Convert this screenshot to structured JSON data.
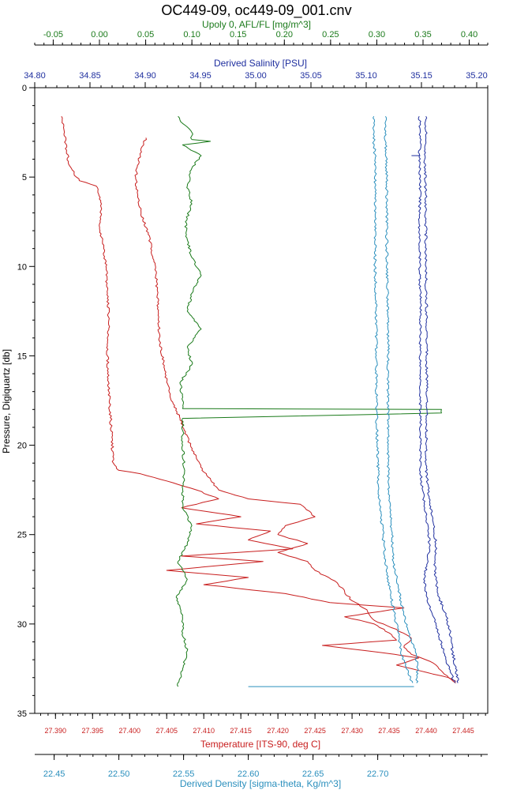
{
  "chart_data": {
    "type": "line",
    "title": "OC449-09, oc449-09_001.cnv",
    "grid": false,
    "legend": "none",
    "y_axis": {
      "label": "Pressure, Digiquartz [db]",
      "range": [
        0,
        35
      ],
      "inverted": true,
      "ticks": [
        0,
        5,
        10,
        15,
        20,
        25,
        30,
        35
      ],
      "tick_labels": [
        "0",
        "5",
        "10",
        "15",
        "20",
        "25",
        "30",
        "35"
      ]
    },
    "x_axes": [
      {
        "id": "upoly",
        "position": "top-outer",
        "label": "Upoly 0, AFL/FL [mg/m^3]",
        "color": "#1a7a1a",
        "range": [
          -0.07,
          0.42
        ],
        "ticks": [
          -0.05,
          0.0,
          0.05,
          0.1,
          0.15,
          0.2,
          0.25,
          0.3,
          0.35,
          0.4
        ],
        "tick_labels": [
          "-0.05",
          "0.00",
          "0.05",
          "0.10",
          "0.15",
          "0.20",
          "0.25",
          "0.30",
          "0.35",
          "0.40"
        ]
      },
      {
        "id": "salinity",
        "position": "top-inner",
        "label": "Derived Salinity [PSU]",
        "color": "#1f2f9f",
        "range": [
          34.8,
          35.21
        ],
        "ticks": [
          34.8,
          34.85,
          34.9,
          34.95,
          35.0,
          35.05,
          35.1,
          35.15,
          35.2
        ],
        "tick_labels": [
          "34.80",
          "34.85",
          "34.90",
          "34.95",
          "35.00",
          "35.05",
          "35.10",
          "35.15",
          "35.20"
        ]
      },
      {
        "id": "temperature",
        "position": "bottom-inner",
        "label": "Temperature [ITS-90, deg C]",
        "color": "#c81e1e",
        "range": [
          27.3872,
          27.4483
        ],
        "ticks": [
          27.39,
          27.395,
          27.4,
          27.405,
          27.41,
          27.415,
          27.42,
          27.425,
          27.43,
          27.435,
          27.44,
          27.445
        ],
        "tick_labels": [
          "27.390",
          "27.395",
          "27.400",
          "27.405",
          "27.410",
          "27.415",
          "27.420",
          "27.425",
          "27.430",
          "27.435",
          "27.440",
          "27.445"
        ]
      },
      {
        "id": "density",
        "position": "bottom-outer",
        "label": "Derived Density [sigma-theta, Kg/m^3]",
        "color": "#2a8fbd",
        "range": [
          22.435,
          22.785
        ],
        "ticks": [
          22.45,
          22.5,
          22.55,
          22.6,
          22.65,
          22.7
        ],
        "tick_labels": [
          "22.45",
          "22.50",
          "22.55",
          "22.60",
          "22.65",
          "22.70"
        ]
      }
    ],
    "series": [
      {
        "axis": "temperature",
        "color": "#c81e1e",
        "points": [
          [
            27.3908,
            1.6
          ],
          [
            27.3912,
            2.5
          ],
          [
            27.3915,
            3.5
          ],
          [
            27.3918,
            4.3
          ],
          [
            27.3925,
            4.8
          ],
          [
            27.3932,
            5.2
          ],
          [
            27.3955,
            5.5
          ],
          [
            27.3962,
            6.5
          ],
          [
            27.396,
            8.0
          ],
          [
            27.3965,
            9.0
          ],
          [
            27.3968,
            10.0
          ],
          [
            27.397,
            11.5
          ],
          [
            27.3972,
            13.0
          ],
          [
            27.397,
            15.0
          ],
          [
            27.3972,
            17.0
          ],
          [
            27.3975,
            19.0
          ],
          [
            27.3978,
            21.0
          ],
          [
            27.3985,
            21.4
          ],
          [
            27.4015,
            21.6
          ],
          [
            27.405,
            22.0
          ],
          [
            27.409,
            22.5
          ],
          [
            27.412,
            23.0
          ],
          [
            27.407,
            23.5
          ],
          [
            27.415,
            24.0
          ],
          [
            27.409,
            24.4
          ],
          [
            27.419,
            24.8
          ],
          [
            27.416,
            25.3
          ],
          [
            27.422,
            25.8
          ],
          [
            27.407,
            26.2
          ],
          [
            27.418,
            26.5
          ],
          [
            27.405,
            27.0
          ],
          [
            27.416,
            27.4
          ],
          [
            27.41,
            27.8
          ],
          [
            27.421,
            28.3
          ],
          [
            27.427,
            28.8
          ],
          [
            27.437,
            29.1
          ],
          [
            27.429,
            29.6
          ],
          [
            27.433,
            30.0
          ],
          [
            27.435,
            30.5
          ],
          [
            27.436,
            30.9
          ],
          [
            27.426,
            31.2
          ],
          [
            27.434,
            31.6
          ],
          [
            27.439,
            31.9
          ],
          [
            27.436,
            32.3
          ],
          [
            27.44,
            32.7
          ],
          [
            27.443,
            33.0
          ],
          [
            27.444,
            33.2
          ]
        ]
      },
      {
        "axis": "temperature",
        "color": "#c81e1e",
        "points": [
          [
            27.4022,
            2.8
          ],
          [
            27.4015,
            3.5
          ],
          [
            27.4008,
            5.0
          ],
          [
            27.4012,
            6.5
          ],
          [
            27.4025,
            8.2
          ],
          [
            27.4035,
            10.0
          ],
          [
            27.4038,
            12.0
          ],
          [
            27.404,
            14.0
          ],
          [
            27.4048,
            16.0
          ],
          [
            27.4056,
            17.5
          ],
          [
            27.4068,
            18.5
          ],
          [
            27.4082,
            20.0
          ],
          [
            27.41,
            21.5
          ],
          [
            27.412,
            22.5
          ],
          [
            27.416,
            23.0
          ],
          [
            27.423,
            23.3
          ],
          [
            27.425,
            24.0
          ],
          [
            27.421,
            24.5
          ],
          [
            27.42,
            25.0
          ],
          [
            27.424,
            25.5
          ],
          [
            27.42,
            26.0
          ],
          [
            27.424,
            26.5
          ],
          [
            27.425,
            27.0
          ],
          [
            27.428,
            27.7
          ],
          [
            27.429,
            28.2
          ],
          [
            27.43,
            28.7
          ],
          [
            27.432,
            29.2
          ],
          [
            27.433,
            29.8
          ],
          [
            27.436,
            30.3
          ],
          [
            27.438,
            30.8
          ],
          [
            27.437,
            31.3
          ],
          [
            27.438,
            31.7
          ],
          [
            27.441,
            32.2
          ],
          [
            27.442,
            32.6
          ],
          [
            27.443,
            33.0
          ],
          [
            27.444,
            33.3
          ]
        ]
      },
      {
        "axis": "upoly",
        "color": "#1a7a1a",
        "points": [
          [
            0.085,
            1.6
          ],
          [
            0.09,
            2.0
          ],
          [
            0.1,
            2.5
          ],
          [
            0.1,
            2.9
          ],
          [
            0.12,
            3.0
          ],
          [
            0.09,
            3.2
          ],
          [
            0.11,
            3.8
          ],
          [
            0.1,
            4.5
          ],
          [
            0.095,
            5.5
          ],
          [
            0.1,
            6.5
          ],
          [
            0.093,
            7.5
          ],
          [
            0.095,
            8.5
          ],
          [
            0.1,
            9.5
          ],
          [
            0.11,
            10.5
          ],
          [
            0.1,
            11.5
          ],
          [
            0.095,
            12.5
          ],
          [
            0.11,
            13.5
          ],
          [
            0.095,
            14.5
          ],
          [
            0.1,
            15.5
          ],
          [
            0.087,
            16.5
          ],
          [
            0.09,
            17.5
          ],
          [
            0.09,
            17.95
          ],
          [
            0.37,
            18.0
          ],
          [
            0.37,
            18.2
          ],
          [
            0.09,
            18.5
          ],
          [
            0.09,
            20.0
          ],
          [
            0.092,
            21.5
          ],
          [
            0.09,
            22.5
          ],
          [
            0.09,
            23.5
          ],
          [
            0.1,
            24.5
          ],
          [
            0.095,
            25.5
          ],
          [
            0.085,
            26.5
          ],
          [
            0.095,
            27.5
          ],
          [
            0.083,
            28.5
          ],
          [
            0.09,
            29.5
          ],
          [
            0.09,
            30.5
          ],
          [
            0.095,
            31.5
          ],
          [
            0.09,
            32.5
          ],
          [
            0.085,
            33.5
          ]
        ]
      },
      {
        "axis": "salinity",
        "color": "#1f2f9f",
        "points": [
          [
            35.148,
            1.6
          ],
          [
            35.149,
            3.0
          ],
          [
            35.148,
            3.8
          ],
          [
            35.149,
            5.0
          ],
          [
            35.148,
            8.0
          ],
          [
            35.149,
            12.0
          ],
          [
            35.149,
            16.0
          ],
          [
            35.149,
            20.0
          ],
          [
            35.149,
            21.5
          ],
          [
            35.151,
            22.5
          ],
          [
            35.153,
            23.5
          ],
          [
            35.156,
            24.5
          ],
          [
            35.157,
            25.5
          ],
          [
            35.156,
            26.5
          ],
          [
            35.152,
            27.5
          ],
          [
            35.155,
            28.5
          ],
          [
            35.16,
            29.5
          ],
          [
            35.165,
            30.5
          ],
          [
            35.17,
            31.5
          ],
          [
            35.175,
            32.5
          ],
          [
            35.18,
            33.3
          ]
        ]
      },
      {
        "axis": "salinity",
        "color": "#1f2f9f",
        "points": [
          [
            35.154,
            1.6
          ],
          [
            35.154,
            3.0
          ],
          [
            35.153,
            4.0
          ],
          [
            35.154,
            6.0
          ],
          [
            35.154,
            10.0
          ],
          [
            35.155,
            14.0
          ],
          [
            35.155,
            18.0
          ],
          [
            35.154,
            21.0
          ],
          [
            35.156,
            22.5
          ],
          [
            35.16,
            24.0
          ],
          [
            35.163,
            25.5
          ],
          [
            35.162,
            26.5
          ],
          [
            35.163,
            27.5
          ],
          [
            35.166,
            28.5
          ],
          [
            35.172,
            29.5
          ],
          [
            35.176,
            30.5
          ],
          [
            35.178,
            31.5
          ],
          [
            35.181,
            32.5
          ],
          [
            35.183,
            33.3
          ]
        ]
      },
      {
        "axis": "density",
        "color": "#2a8fbd",
        "points": [
          [
            22.697,
            1.6
          ],
          [
            22.697,
            3.0
          ],
          [
            22.698,
            4.0
          ],
          [
            22.698,
            6.0
          ],
          [
            22.698,
            10.0
          ],
          [
            22.699,
            14.0
          ],
          [
            22.699,
            18.0
          ],
          [
            22.7,
            21.0
          ],
          [
            22.701,
            23.0
          ],
          [
            22.704,
            25.0
          ],
          [
            22.706,
            26.5
          ],
          [
            22.709,
            28.0
          ],
          [
            22.713,
            29.5
          ],
          [
            22.716,
            30.5
          ],
          [
            22.718,
            31.5
          ],
          [
            22.722,
            32.5
          ],
          [
            22.727,
            33.3
          ]
        ]
      },
      {
        "axis": "density",
        "color": "#2a8fbd",
        "points": [
          [
            22.706,
            1.6
          ],
          [
            22.706,
            3.0
          ],
          [
            22.707,
            5.0
          ],
          [
            22.707,
            9.0
          ],
          [
            22.708,
            13.0
          ],
          [
            22.708,
            17.0
          ],
          [
            22.708,
            21.0
          ],
          [
            22.709,
            23.0
          ],
          [
            22.711,
            25.0
          ],
          [
            22.712,
            26.5
          ],
          [
            22.716,
            28.0
          ],
          [
            22.72,
            29.5
          ],
          [
            22.724,
            30.5
          ],
          [
            22.729,
            31.5
          ],
          [
            22.731,
            32.5
          ],
          [
            22.73,
            33.3
          ]
        ]
      },
      {
        "axis": "density",
        "color": "#2a8fbd",
        "points": [
          [
            22.6,
            33.5
          ],
          [
            22.728,
            33.5
          ]
        ]
      },
      {
        "axis": "salinity",
        "color": "#1f2f9f",
        "points": [
          [
            35.141,
            3.8
          ],
          [
            35.149,
            3.8
          ]
        ]
      }
    ]
  }
}
